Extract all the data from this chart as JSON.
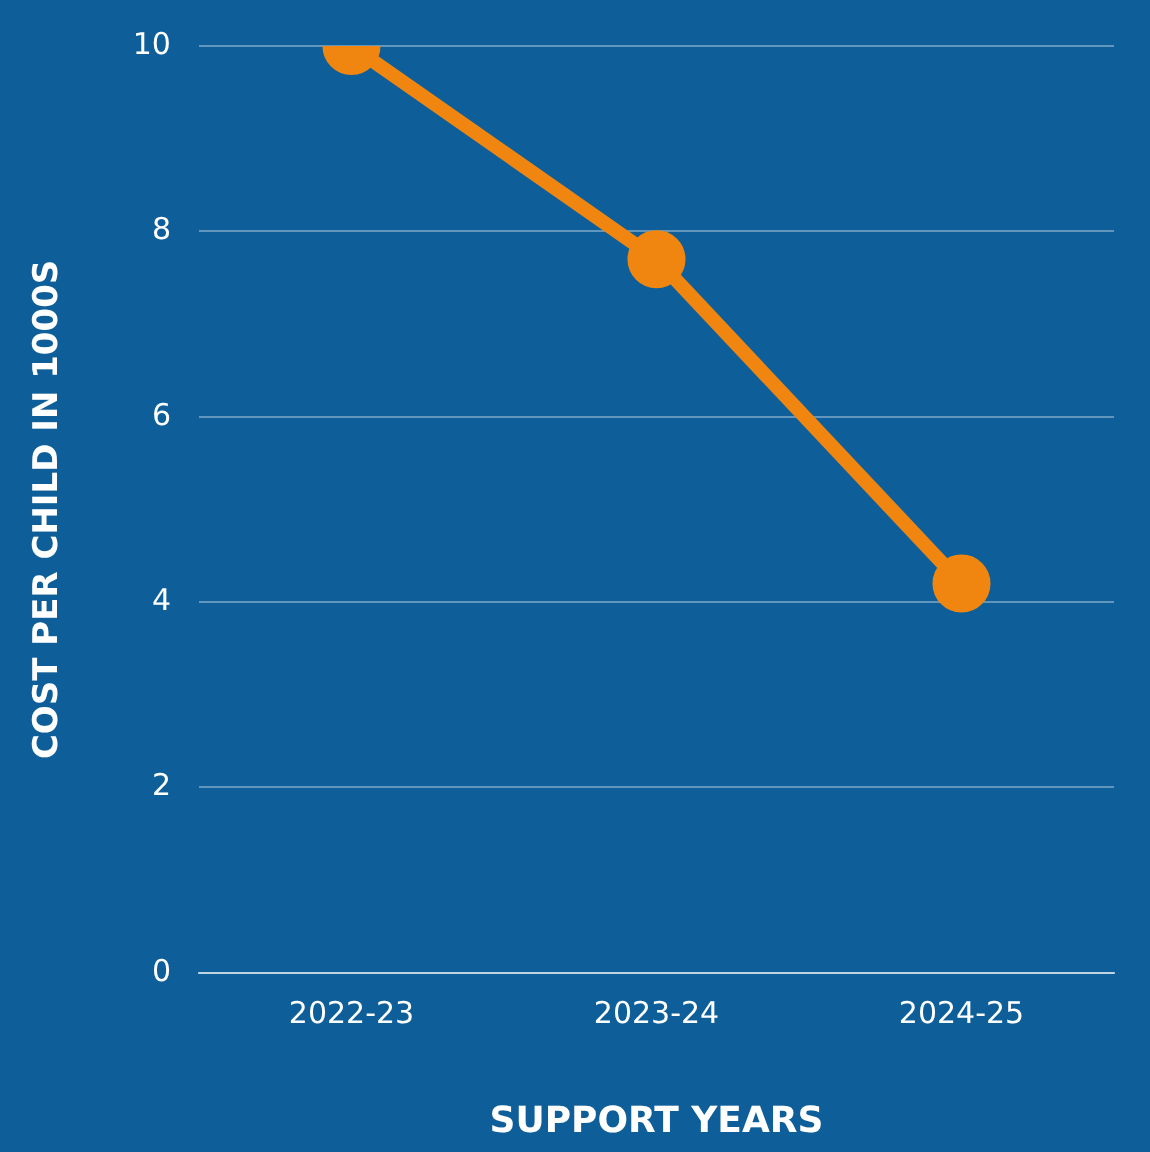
{
  "chart_data": {
    "type": "line",
    "xlabel": "SUPPORT YEARS",
    "ylabel": "COST PER CHILD IN 1000S",
    "categories": [
      "2022-23",
      "2023-24",
      "2024-25"
    ],
    "series": [
      {
        "color": "#f0860f",
        "values": [
          10,
          7.7,
          4.2
        ]
      }
    ],
    "ylim": [
      0,
      10
    ],
    "yticks": [
      0,
      2,
      4,
      6,
      8,
      10
    ],
    "grid": "y",
    "legend": false,
    "marker": "circle",
    "line_style": "solid"
  }
}
